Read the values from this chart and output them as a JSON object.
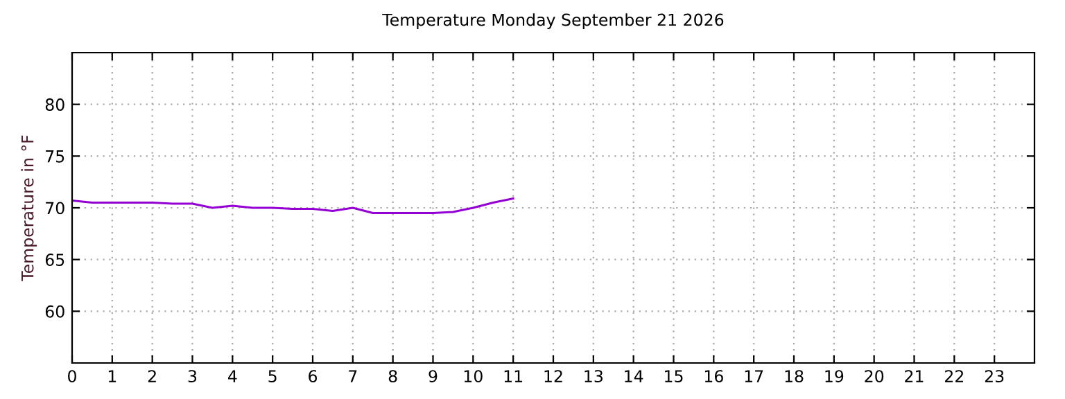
{
  "chart_data": {
    "type": "line",
    "title": "Temperature Monday September 21 2026",
    "ylabel": "Temperature in °F",
    "x": [
      0,
      0.5,
      1,
      1.5,
      2,
      2.5,
      3,
      3.5,
      4,
      4.5,
      5,
      5.5,
      6,
      6.5,
      7,
      7.5,
      8,
      8.5,
      9,
      9.5,
      10,
      10.5,
      11
    ],
    "series": [
      {
        "color": "#9400d3",
        "values": [
          70.7,
          70.5,
          70.5,
          70.5,
          70.5,
          70.4,
          70.4,
          70.0,
          70.2,
          70.0,
          70.0,
          69.9,
          69.9,
          69.7,
          70.0,
          69.5,
          69.5,
          69.5,
          69.5,
          69.6,
          70.0,
          70.5,
          70.9
        ]
      }
    ],
    "xlim": [
      0,
      24
    ],
    "xticks": [
      0,
      1,
      2,
      3,
      4,
      5,
      6,
      7,
      8,
      9,
      10,
      11,
      12,
      13,
      14,
      15,
      16,
      17,
      18,
      19,
      20,
      21,
      22,
      23
    ],
    "ylim": [
      55,
      85
    ],
    "yticks": [
      60,
      65,
      70,
      75,
      80
    ],
    "grid": true,
    "line_style": "solid",
    "legend": false
  }
}
